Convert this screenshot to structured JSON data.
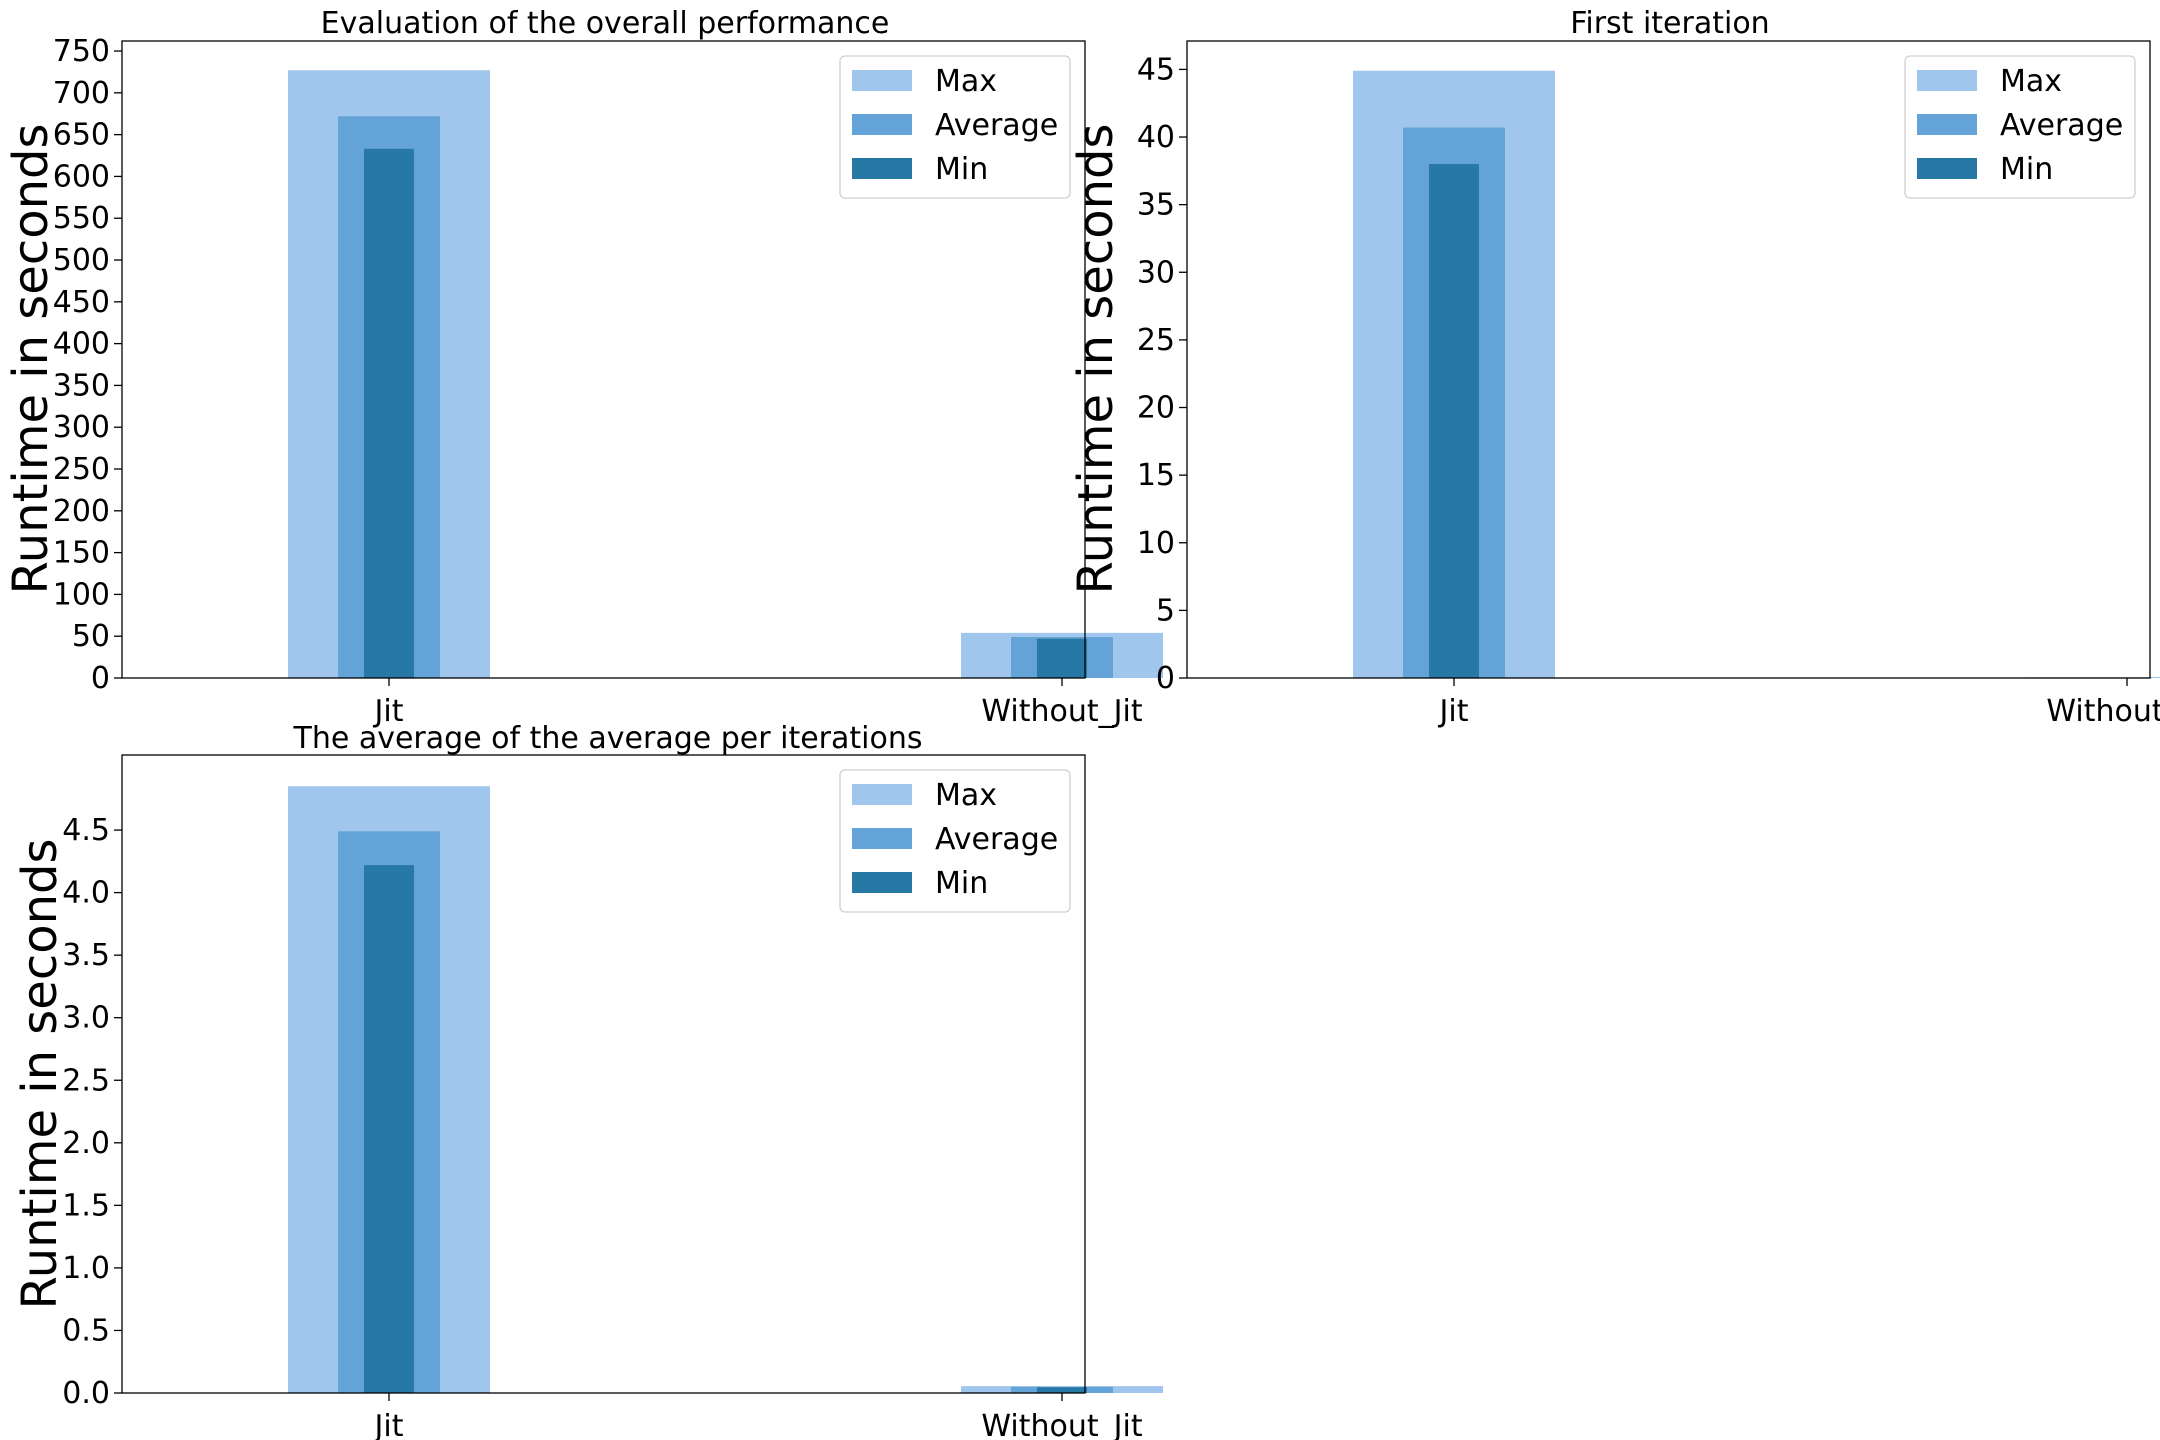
{
  "colors": {
    "max": "#a1c6ed",
    "average": "#64a3d7",
    "min": "#2878a6",
    "axis": "#000000",
    "background": "#ffffff"
  },
  "chart_data": [
    {
      "type": "bar",
      "title": "Evaluation of  the overall performance",
      "xlabel": "",
      "ylabel": "Runtime in seconds",
      "categories": [
        "Jit",
        "Without_Jit"
      ],
      "series": [
        {
          "name": "Max",
          "values": [
            727,
            54
          ]
        },
        {
          "name": "Average",
          "values": [
            672,
            49
          ]
        },
        {
          "name": "Min",
          "values": [
            633,
            47
          ]
        }
      ],
      "ylim": [
        0,
        762
      ],
      "yticks": [
        "0",
        "50",
        "100",
        "150",
        "200",
        "250",
        "300",
        "350",
        "400",
        "450",
        "500",
        "550",
        "600",
        "650",
        "700",
        "750"
      ],
      "legend": "top-right",
      "grid": false
    },
    {
      "type": "bar",
      "title": "First iteration",
      "xlabel": "",
      "ylabel": "Runtime in seconds",
      "categories": [
        "Jit",
        "Without_Jit"
      ],
      "series": [
        {
          "name": "Max",
          "values": [
            44.9,
            0.05
          ]
        },
        {
          "name": "Average",
          "values": [
            40.7,
            0.04
          ]
        },
        {
          "name": "Min",
          "values": [
            38.0,
            0.03
          ]
        }
      ],
      "ylim": [
        0,
        47.1
      ],
      "yticks": [
        "0",
        "5",
        "10",
        "15",
        "20",
        "25",
        "30",
        "35",
        "40",
        "45"
      ],
      "legend": "top-right",
      "grid": false
    },
    {
      "type": "bar",
      "title": "The average of the average per iterations",
      "xlabel": "",
      "ylabel": "Runtime in seconds",
      "categories": [
        "Jit",
        "Without_Jit"
      ],
      "series": [
        {
          "name": "Max",
          "values": [
            4.85,
            0.055
          ]
        },
        {
          "name": "Average",
          "values": [
            4.49,
            0.05
          ]
        },
        {
          "name": "Min",
          "values": [
            4.22,
            0.045
          ]
        }
      ],
      "ylim": [
        0,
        5.1
      ],
      "yticks": [
        "0.0",
        "0.5",
        "1.0",
        "1.5",
        "2.0",
        "2.5",
        "3.0",
        "3.5",
        "4.0",
        "4.5"
      ],
      "legend": "top-right",
      "grid": false
    }
  ]
}
